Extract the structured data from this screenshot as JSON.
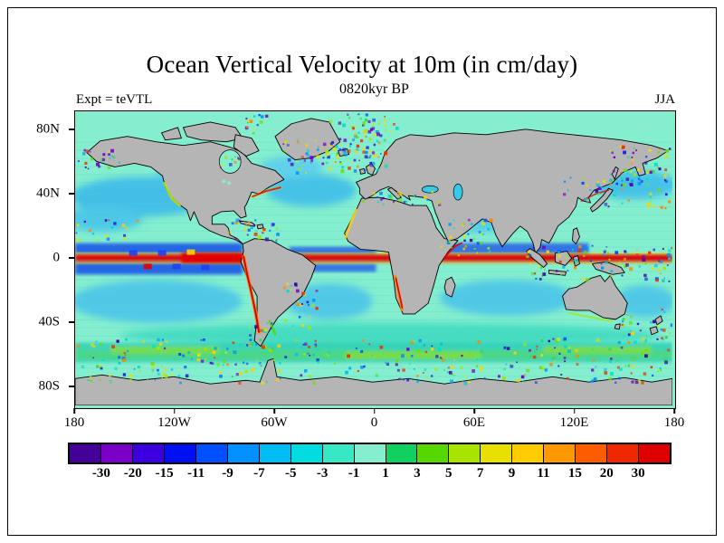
{
  "chart_data": {
    "type": "heatmap",
    "title": "Ocean Vertical Velocity at 10m (in cm/day)",
    "subtitle": "0820kyr BP",
    "experiment": "Expt = teVTL",
    "season": "JJA",
    "variable": "Ocean Vertical Velocity",
    "depth": "10m",
    "units": "cm/day",
    "projection": "global latitude-longitude map",
    "x_ticks": [
      "180",
      "120W",
      "60W",
      "0",
      "60E",
      "120E",
      "180"
    ],
    "y_ticks": [
      "80N",
      "40N",
      "0",
      "40S",
      "80S"
    ],
    "colorbar": {
      "levels": [
        "-30",
        "-20",
        "-15",
        "-11",
        "-9",
        "-7",
        "-5",
        "-3",
        "-1",
        "1",
        "3",
        "5",
        "7",
        "9",
        "11",
        "15",
        "20",
        "30"
      ],
      "colors": [
        "#46009a",
        "#7a00c8",
        "#3c00e0",
        "#0010f0",
        "#0050ff",
        "#0090ff",
        "#00bcf5",
        "#00dce0",
        "#38e8c4",
        "#84eecf",
        "#10d060",
        "#55d800",
        "#a8e400",
        "#e8e000",
        "#ffcc00",
        "#ff9800",
        "#ff5c00",
        "#f02800",
        "#dc0000"
      ],
      "legend_orientation": "horizontal"
    },
    "land_color": "#b5b5b5",
    "ocean_base_color": "#84eecf"
  }
}
